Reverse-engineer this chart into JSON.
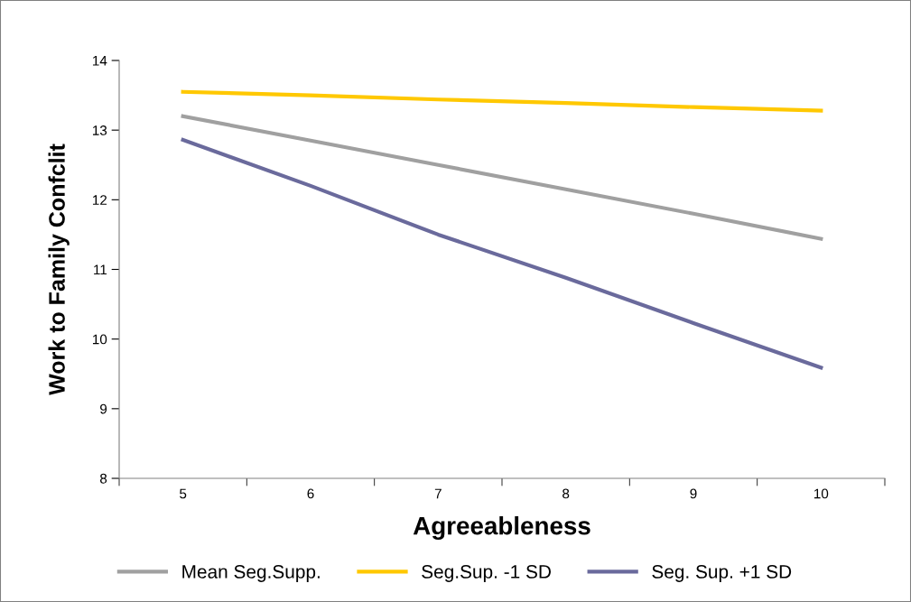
{
  "chart_data": {
    "type": "line",
    "xlabel": "Agreeableness",
    "ylabel": "Work to Family Confclit",
    "categories": [
      "5",
      "6",
      "7",
      "8",
      "9",
      "10"
    ],
    "series": [
      {
        "name": "Mean Seg.Supp.",
        "color": "#a0a0a0",
        "values": [
          13.2,
          12.85,
          12.5,
          12.15,
          11.8,
          11.44
        ]
      },
      {
        "name": "Seg.Sup. -1 SD",
        "color": "#ffc800",
        "values": [
          13.55,
          13.5,
          13.44,
          13.39,
          13.33,
          13.28
        ]
      },
      {
        "name": "Seg. Sup. +1 SD",
        "color": "#6a6a9c",
        "values": [
          12.86,
          12.2,
          11.5,
          10.88,
          10.23,
          9.59
        ]
      }
    ],
    "ylim": [
      8,
      14
    ],
    "yticks": [
      8,
      9,
      10,
      11,
      12,
      13,
      14
    ],
    "grid": false,
    "legend": "bottom",
    "marker": "none",
    "line_style": "solid"
  }
}
